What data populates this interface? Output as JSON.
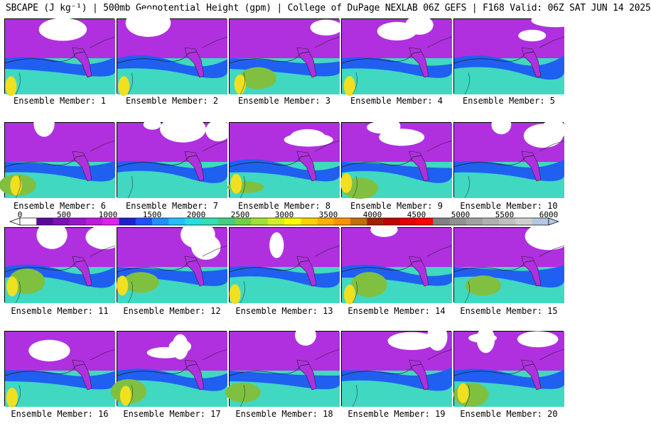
{
  "title": "SBCAPE (J kg⁻¹) | 500mb Geopotential Height (gpm) | College of DuPage NEXLAB 06Z GEFS | F168 Valid: 06Z SAT JUN 14 2025",
  "members": [
    "Ensemble Member: 1",
    "Ensemble Member: 2",
    "Ensemble Member: 3",
    "Ensemble Member: 4",
    "Ensemble Member: 5",
    "Ensemble Member: 6",
    "Ensemble Member: 7",
    "Ensemble Member: 8",
    "Ensemble Member: 9",
    "Ensemble Member: 10",
    "Ensemble Member: 11",
    "Ensemble Member: 12",
    "Ensemble Member: 13",
    "Ensemble Member: 14",
    "Ensemble Member: 15",
    "Ensemble Member: 16",
    "Ensemble Member: 17",
    "Ensemble Member: 18",
    "Ensemble Member: 19",
    "Ensemble Member: 20"
  ],
  "colorbar": {
    "ticks": [
      "0",
      "500",
      "1000",
      "1500",
      "2000",
      "2500",
      "3000",
      "3500",
      "4000",
      "4500",
      "5000",
      "5500",
      "6000"
    ],
    "colors": [
      "#ffffff",
      "#5a0a9a",
      "#7a10b8",
      "#9a14d0",
      "#c018e0",
      "#e020f0",
      "#2020d0",
      "#2050ff",
      "#2090ff",
      "#20c0ff",
      "#20e0e0",
      "#30e0b0",
      "#40d080",
      "#70d040",
      "#a0e030",
      "#d0f020",
      "#ffff00",
      "#ffd000",
      "#ffb000",
      "#ff9000",
      "#c07000",
      "#a02000",
      "#c00000",
      "#e00000",
      "#ff0000",
      "#808080",
      "#909090",
      "#a0a0a0",
      "#b0b0b0",
      "#c0c0c0",
      "#d0d0d0",
      "#b0c8e0"
    ]
  },
  "colors": {
    "low": "#b030e0",
    "mid": "#2060f0",
    "high": "#40d8c0",
    "veryhigh": "#80c040",
    "extreme": "#f0e020",
    "nocape": "#ffffff"
  }
}
